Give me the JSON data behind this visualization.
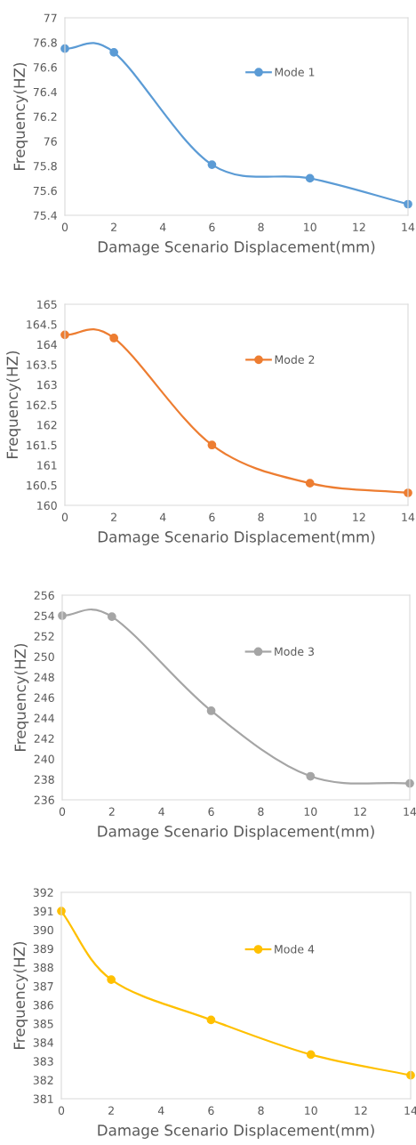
{
  "chart_data": [
    {
      "type": "line",
      "xlabel": "Damage Scenario Displacement(mm)",
      "ylabel": "Frequency(HZ)",
      "x": [
        0,
        2,
        6,
        10,
        14
      ],
      "xlim": [
        0,
        14
      ],
      "xticks": [
        0,
        2,
        4,
        6,
        8,
        10,
        12,
        14
      ],
      "ylim": [
        75.4,
        77
      ],
      "yticks": [
        75.4,
        75.6,
        75.8,
        76,
        76.2,
        76.4,
        76.6,
        76.8,
        77
      ],
      "marker": "circle",
      "legend": "top",
      "grid": false,
      "series": [
        {
          "name": "Mode 1",
          "color": "#5b9bd5",
          "values": [
            76.75,
            76.72,
            75.81,
            75.7,
            75.49
          ]
        }
      ]
    },
    {
      "type": "line",
      "xlabel": "Damage Scenario Displacement(mm)",
      "ylabel": "Frequency(HZ)",
      "x": [
        0,
        2,
        6,
        10,
        14
      ],
      "xlim": [
        0,
        14
      ],
      "xticks": [
        0,
        2,
        4,
        6,
        8,
        10,
        12,
        14
      ],
      "ylim": [
        160,
        165
      ],
      "yticks": [
        160,
        160.5,
        161,
        161.5,
        162,
        162.5,
        163,
        163.5,
        164,
        164.5,
        165
      ],
      "marker": "circle",
      "legend": "top",
      "grid": false,
      "series": [
        {
          "name": "Mode 2",
          "color": "#ed7d31",
          "values": [
            164.24,
            164.16,
            161.5,
            160.55,
            160.31
          ]
        }
      ]
    },
    {
      "type": "line",
      "xlabel": "Damage Scenario Displacement(mm)",
      "ylabel": "Frequency(HZ)",
      "x": [
        0,
        2,
        6,
        10,
        14
      ],
      "xlim": [
        0,
        14
      ],
      "xticks": [
        0,
        2,
        4,
        6,
        8,
        10,
        12,
        14
      ],
      "ylim": [
        236,
        256
      ],
      "yticks": [
        236,
        238,
        240,
        242,
        244,
        246,
        248,
        250,
        252,
        254,
        256
      ],
      "marker": "circle",
      "legend": "top",
      "grid": false,
      "series": [
        {
          "name": "Mode 3",
          "color": "#a5a5a5",
          "values": [
            254.0,
            253.9,
            244.7,
            238.3,
            237.6
          ]
        }
      ]
    },
    {
      "type": "line",
      "xlabel": "Damage Scenario Displacement(mm)",
      "ylabel": "Frequency(HZ)",
      "x": [
        0,
        2,
        6,
        10,
        14
      ],
      "xlim": [
        0,
        14
      ],
      "xticks": [
        0,
        2,
        4,
        6,
        8,
        10,
        12,
        14
      ],
      "ylim": [
        381,
        392
      ],
      "yticks": [
        381,
        382,
        383,
        384,
        385,
        386,
        387,
        388,
        389,
        390,
        391,
        392
      ],
      "marker": "circle",
      "legend": "top",
      "grid": false,
      "series": [
        {
          "name": "Mode 4",
          "color": "#ffc000",
          "values": [
            391.0,
            387.35,
            385.2,
            383.35,
            382.25
          ]
        }
      ]
    }
  ]
}
